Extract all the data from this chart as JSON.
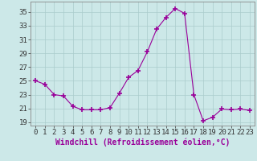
{
  "hours": [
    0,
    1,
    2,
    3,
    4,
    5,
    6,
    7,
    8,
    9,
    10,
    11,
    12,
    13,
    14,
    15,
    16,
    17,
    18,
    19,
    20,
    21,
    22,
    23
  ],
  "values": [
    25.0,
    24.5,
    23.0,
    22.8,
    21.3,
    20.8,
    20.8,
    20.8,
    21.1,
    23.2,
    25.5,
    26.5,
    29.2,
    32.5,
    34.2,
    35.5,
    34.8,
    23.0,
    19.2,
    19.7,
    20.9,
    20.8,
    20.9,
    20.7
  ],
  "line_color": "#990099",
  "marker": "+",
  "marker_size": 4,
  "bg_color": "#cce8e8",
  "grid_color": "#b0d0d0",
  "xlabel": "Windchill (Refroidissement éolien,°C)",
  "xlabel_fontsize": 7,
  "ylabel_ticks": [
    19,
    21,
    23,
    25,
    27,
    29,
    31,
    33,
    35
  ],
  "ylim": [
    18.5,
    36.5
  ],
  "xlim": [
    -0.5,
    23.5
  ],
  "tick_fontsize": 6.5
}
